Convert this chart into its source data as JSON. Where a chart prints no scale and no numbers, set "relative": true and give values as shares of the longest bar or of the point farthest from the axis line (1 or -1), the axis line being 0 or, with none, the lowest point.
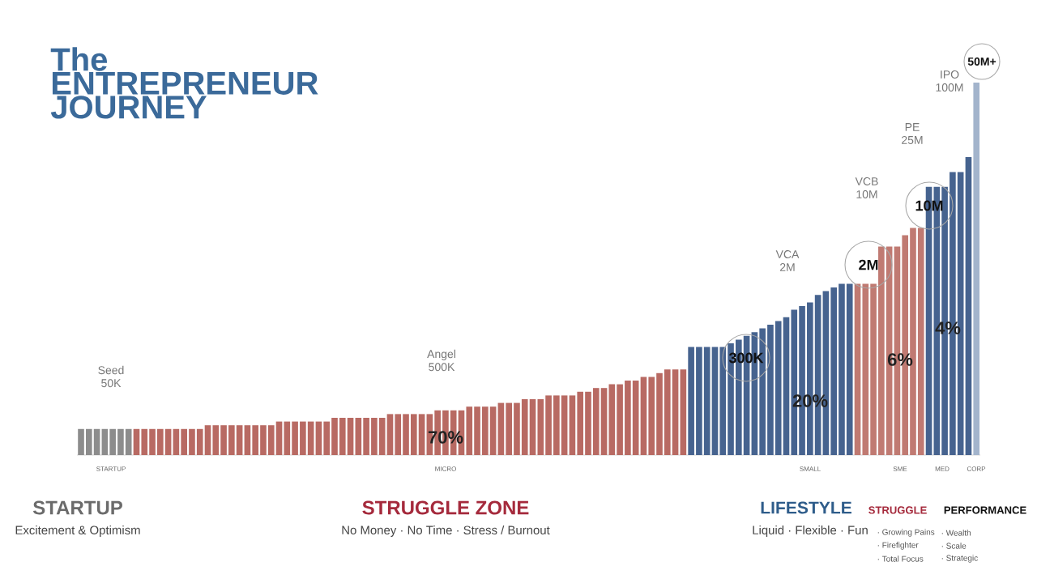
{
  "chart_data": {
    "type": "bar",
    "relative": true,
    "title": "The ENTREPRENEUR JOURNEY",
    "categories": [
      null,
      null,
      null,
      null,
      null,
      null,
      null,
      null,
      null,
      null,
      null,
      null,
      null,
      null,
      null,
      null,
      null,
      null,
      null,
      null,
      null,
      null,
      null,
      null,
      null,
      null,
      null,
      null,
      null,
      null,
      null,
      null,
      null,
      null,
      null,
      null,
      null,
      null,
      null,
      null,
      null,
      null,
      null,
      null,
      null,
      null,
      null,
      null,
      null,
      null,
      null,
      null,
      null,
      null,
      null,
      null,
      null,
      null,
      null,
      null,
      null,
      null,
      null,
      null,
      null,
      null,
      null,
      null,
      null,
      null,
      null,
      null,
      null,
      null,
      null,
      null,
      null,
      null,
      null,
      null,
      null,
      null,
      null,
      null,
      null,
      null,
      null,
      null,
      null,
      null,
      null,
      null,
      null,
      null,
      null,
      null,
      null,
      null,
      null,
      null,
      null,
      null,
      null,
      null,
      null,
      null,
      null,
      null,
      null,
      null,
      null,
      null,
      null,
      null
    ],
    "values": [
      0.07,
      0.07,
      0.07,
      0.07,
      0.07,
      0.07,
      0.07,
      0.07,
      0.07,
      0.07,
      0.07,
      0.07,
      0.07,
      0.07,
      0.07,
      0.07,
      0.08,
      0.08,
      0.08,
      0.08,
      0.08,
      0.08,
      0.08,
      0.08,
      0.08,
      0.09,
      0.09,
      0.09,
      0.09,
      0.09,
      0.09,
      0.09,
      0.1,
      0.1,
      0.1,
      0.1,
      0.1,
      0.1,
      0.1,
      0.11,
      0.11,
      0.11,
      0.11,
      0.11,
      0.11,
      0.12,
      0.12,
      0.12,
      0.12,
      0.13,
      0.13,
      0.13,
      0.13,
      0.14,
      0.14,
      0.14,
      0.15,
      0.15,
      0.15,
      0.16,
      0.16,
      0.16,
      0.16,
      0.17,
      0.17,
      0.18,
      0.18,
      0.19,
      0.19,
      0.2,
      0.2,
      0.21,
      0.21,
      0.22,
      0.23,
      0.23,
      0.23,
      0.29,
      0.29,
      0.29,
      0.29,
      0.29,
      0.3,
      0.31,
      0.32,
      0.33,
      0.34,
      0.35,
      0.36,
      0.37,
      0.39,
      0.4,
      0.41,
      0.43,
      0.44,
      0.45,
      0.46,
      0.46,
      0.46,
      0.46,
      0.46,
      0.56,
      0.56,
      0.56,
      0.59,
      0.61,
      0.61,
      0.72,
      0.72,
      0.72,
      0.76,
      0.76,
      0.8,
      1
    ],
    "colors": [
      "#8c8c8c",
      "#8c8c8c",
      "#8c8c8c",
      "#8c8c8c",
      "#8c8c8c",
      "#8c8c8c",
      "#8c8c8c",
      "#b86a63",
      "#b86a63",
      "#b86a63",
      "#b86a63",
      "#b86a63",
      "#b86a63",
      "#b86a63",
      "#b86a63",
      "#b86a63",
      "#b86a63",
      "#b86a63",
      "#b86a63",
      "#b86a63",
      "#b86a63",
      "#b86a63",
      "#b86a63",
      "#b86a63",
      "#b86a63",
      "#b86a63",
      "#b86a63",
      "#b86a63",
      "#b86a63",
      "#b86a63",
      "#b86a63",
      "#b86a63",
      "#b86a63",
      "#b86a63",
      "#b86a63",
      "#b86a63",
      "#b86a63",
      "#b86a63",
      "#b86a63",
      "#b86a63",
      "#b86a63",
      "#b86a63",
      "#b86a63",
      "#b86a63",
      "#b86a63",
      "#b86a63",
      "#b86a63",
      "#b86a63",
      "#b86a63",
      "#b86a63",
      "#b86a63",
      "#b86a63",
      "#b86a63",
      "#b86a63",
      "#b86a63",
      "#b86a63",
      "#b86a63",
      "#b86a63",
      "#b86a63",
      "#b86a63",
      "#b86a63",
      "#b86a63",
      "#b86a63",
      "#b86a63",
      "#b86a63",
      "#b86a63",
      "#b86a63",
      "#b86a63",
      "#b86a63",
      "#b86a63",
      "#b86a63",
      "#b86a63",
      "#b86a63",
      "#b86a63",
      "#b86a63",
      "#b86a63",
      "#b86a63",
      "#46638f",
      "#46638f",
      "#46638f",
      "#46638f",
      "#46638f",
      "#46638f",
      "#46638f",
      "#46638f",
      "#46638f",
      "#46638f",
      "#46638f",
      "#46638f",
      "#46638f",
      "#46638f",
      "#46638f",
      "#46638f",
      "#46638f",
      "#46638f",
      "#46638f",
      "#46638f",
      "#46638f",
      "#c07a72",
      "#c07a72",
      "#c07a72",
      "#c07a72",
      "#c07a72",
      "#c07a72",
      "#c07a72",
      "#c07a72",
      "#c07a72",
      "#46638f",
      "#46638f",
      "#46638f",
      "#46638f",
      "#46638f",
      "#46638f",
      "#a3b4cc"
    ],
    "annotations": [
      "Seed 50K",
      "Angel 500K",
      "VCA 2M",
      "VCB 10M",
      "PE 25M",
      "IPO 100M",
      "300K",
      "2M",
      "10M",
      "50M+",
      "70%",
      "20%",
      "6%",
      "4%",
      "STARTUP",
      "MICRO",
      "SMALL",
      "SME",
      "MED",
      "CORP",
      "STARTUP",
      "Excitement & Optimism",
      "STRUGGLE ZONE",
      "No Money · No Time · Stress / Burnout",
      "LIFESTYLE",
      "Liquid · Flexible · Fun",
      "STRUGGLE",
      "· Growing Pains",
      "· Firefighter",
      "· Total Focus",
      "PERFORMANCE",
      "· Wealth",
      "· Scale",
      "· Strategic"
    ]
  }
}
